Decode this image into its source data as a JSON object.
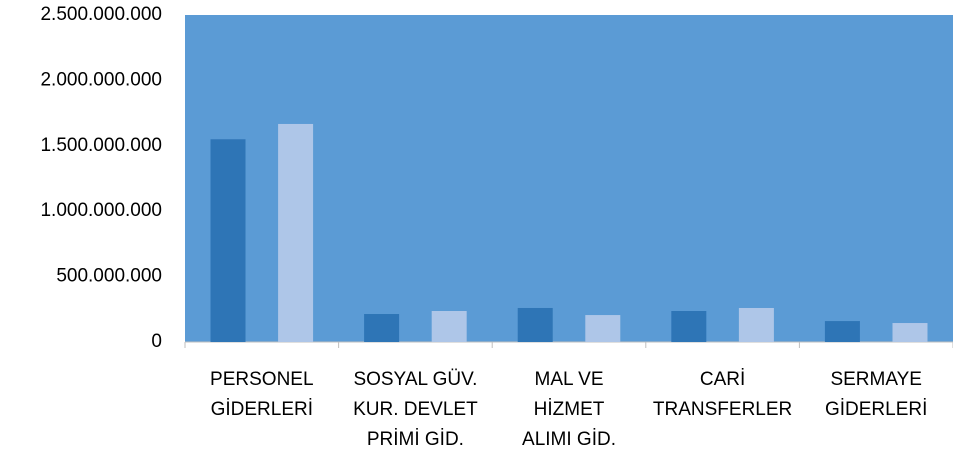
{
  "chart_data": {
    "type": "bar",
    "categories": [
      [
        "PERSONEL",
        "GİDERLERİ"
      ],
      [
        "SOSYAL GÜV.",
        "KUR. DEVLET",
        "PRİMİ GİD."
      ],
      [
        "MAL VE",
        "HİZMET",
        "ALIMI GİD."
      ],
      [
        "CARİ",
        "TRANSFERLER"
      ],
      [
        "SERMAYE",
        "GİDERLERİ"
      ]
    ],
    "series": [
      {
        "color": "#2e75b6",
        "values": [
          1550000000,
          214000000,
          260000000,
          237000000,
          160000000
        ]
      },
      {
        "color": "#aec6e8",
        "values": [
          1667000000,
          237000000,
          206000000,
          260000000,
          145000000
        ]
      }
    ],
    "ylim": [
      0,
      2500000000
    ],
    "yticks": [
      {
        "value": 0,
        "label": "0"
      },
      {
        "value": 500000000,
        "label": "500.000.000"
      },
      {
        "value": 1000000000,
        "label": "1.000.000.000"
      },
      {
        "value": 1500000000,
        "label": "1.500.000.000"
      },
      {
        "value": 2000000000,
        "label": "2.000.000.000"
      },
      {
        "value": 2500000000,
        "label": "2.500.000.000"
      }
    ],
    "plot_background": "#5b9bd5",
    "grid": false
  }
}
